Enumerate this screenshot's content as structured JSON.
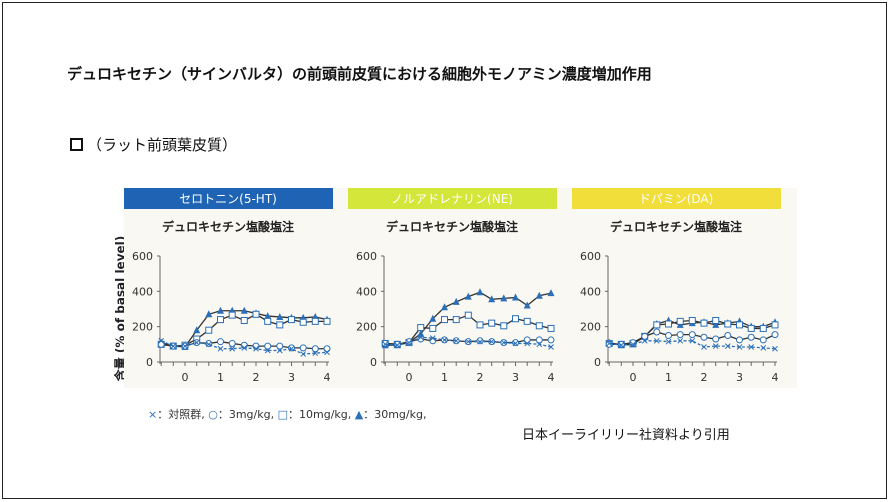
{
  "title": "デュロキセチン（サインバルタ）の前頭前皮質における細胞外モノアミン濃度増加作用",
  "subtitle": "（ラット前頭葉皮質）",
  "y_axis_label": "含量 (% of basal level)",
  "legend": {
    "control_marker": "×",
    "control": "：対照群,",
    "low_marker": "○",
    "low": "：3mg/kg,",
    "mid_marker": "□",
    "mid": "：10mg/kg,",
    "high_marker": "▲",
    "high": "：30mg/kg,"
  },
  "source": "日本イーライリリー社資料より引用",
  "colors": {
    "serotonin_header": "#1f64b4",
    "ne_header": "#d4e63a",
    "da_header": "#f2de3a",
    "series_line": "#2a6fb8",
    "panel_bg": "#faf8f2"
  },
  "chart_data": [
    {
      "type": "line",
      "header": "セロトニン(5-HT)",
      "title": "デュロキセチン塩酸塩注",
      "x": [
        -0.67,
        -0.33,
        0,
        0.33,
        0.67,
        1,
        1.33,
        1.67,
        2,
        2.33,
        2.67,
        3,
        3.33,
        3.67,
        4
      ],
      "xticks": [
        "0",
        "1",
        "2",
        "3",
        "4"
      ],
      "yticks": [
        "0",
        "200",
        "400",
        "600"
      ],
      "ylim": [
        0,
        600
      ],
      "xlim": [
        -0.67,
        4
      ],
      "series": [
        {
          "name": "30mg/kg",
          "marker": "triangle",
          "values": [
            110,
            90,
            85,
            180,
            270,
            290,
            290,
            290,
            275,
            260,
            255,
            250,
            250,
            255,
            240
          ]
        },
        {
          "name": "10mg/kg",
          "marker": "square",
          "values": [
            100,
            90,
            95,
            130,
            180,
            240,
            265,
            235,
            270,
            230,
            210,
            240,
            225,
            230,
            230
          ]
        },
        {
          "name": "3mg/kg",
          "marker": "circle",
          "values": [
            100,
            90,
            90,
            110,
            105,
            115,
            105,
            95,
            90,
            90,
            90,
            80,
            80,
            75,
            75
          ]
        },
        {
          "name": "対照群",
          "marker": "cross",
          "values": [
            120,
            90,
            90,
            110,
            100,
            75,
            75,
            80,
            75,
            65,
            65,
            75,
            45,
            50,
            55
          ]
        }
      ]
    },
    {
      "type": "line",
      "header": "ノルアドレナリン(NE)",
      "title": "デュロキセチン塩酸塩注",
      "x": [
        -0.67,
        -0.33,
        0,
        0.33,
        0.67,
        1,
        1.33,
        1.67,
        2,
        2.33,
        2.67,
        3,
        3.33,
        3.67,
        4
      ],
      "xticks": [
        "0",
        "1",
        "2",
        "3",
        "4"
      ],
      "yticks": [
        "0",
        "200",
        "400",
        "600"
      ],
      "ylim": [
        0,
        600
      ],
      "xlim": [
        -0.67,
        4
      ],
      "series": [
        {
          "name": "30mg/kg",
          "marker": "triangle",
          "values": [
            95,
            95,
            110,
            160,
            245,
            310,
            340,
            370,
            395,
            355,
            360,
            365,
            320,
            375,
            390
          ]
        },
        {
          "name": "10mg/kg",
          "marker": "square",
          "values": [
            105,
            100,
            110,
            195,
            190,
            240,
            240,
            265,
            210,
            220,
            205,
            245,
            230,
            205,
            190
          ]
        },
        {
          "name": "3mg/kg",
          "marker": "circle",
          "values": [
            105,
            100,
            115,
            130,
            120,
            125,
            120,
            115,
            120,
            115,
            110,
            110,
            125,
            125,
            125
          ]
        },
        {
          "name": "対照群",
          "marker": "cross",
          "values": [
            100,
            95,
            110,
            140,
            135,
            125,
            120,
            115,
            115,
            115,
            110,
            105,
            105,
            100,
            85
          ]
        }
      ]
    },
    {
      "type": "line",
      "header": "ドパミン(DA)",
      "title": "デュロキセチン塩酸塩注",
      "x": [
        -0.67,
        -0.33,
        0,
        0.33,
        0.67,
        1,
        1.33,
        1.67,
        2,
        2.33,
        2.67,
        3,
        3.33,
        3.67,
        4
      ],
      "xticks": [
        "0",
        "1",
        "2",
        "3",
        "4"
      ],
      "yticks": [
        "0",
        "200",
        "400",
        "600"
      ],
      "ylim": [
        0,
        600
      ],
      "xlim": [
        -0.67,
        4
      ],
      "series": [
        {
          "name": "30mg/kg",
          "marker": "triangle",
          "values": [
            110,
            95,
            100,
            145,
            215,
            235,
            210,
            220,
            225,
            210,
            220,
            230,
            200,
            200,
            225
          ]
        },
        {
          "name": "10mg/kg",
          "marker": "square",
          "values": [
            105,
            100,
            105,
            145,
            210,
            215,
            230,
            235,
            220,
            235,
            215,
            210,
            190,
            190,
            210
          ]
        },
        {
          "name": "3mg/kg",
          "marker": "circle",
          "values": [
            100,
            100,
            110,
            145,
            170,
            150,
            155,
            155,
            140,
            130,
            150,
            125,
            140,
            125,
            155
          ]
        },
        {
          "name": "対照群",
          "marker": "cross",
          "values": [
            105,
            95,
            100,
            120,
            120,
            115,
            120,
            120,
            85,
            90,
            90,
            85,
            85,
            80,
            75
          ]
        }
      ]
    }
  ]
}
